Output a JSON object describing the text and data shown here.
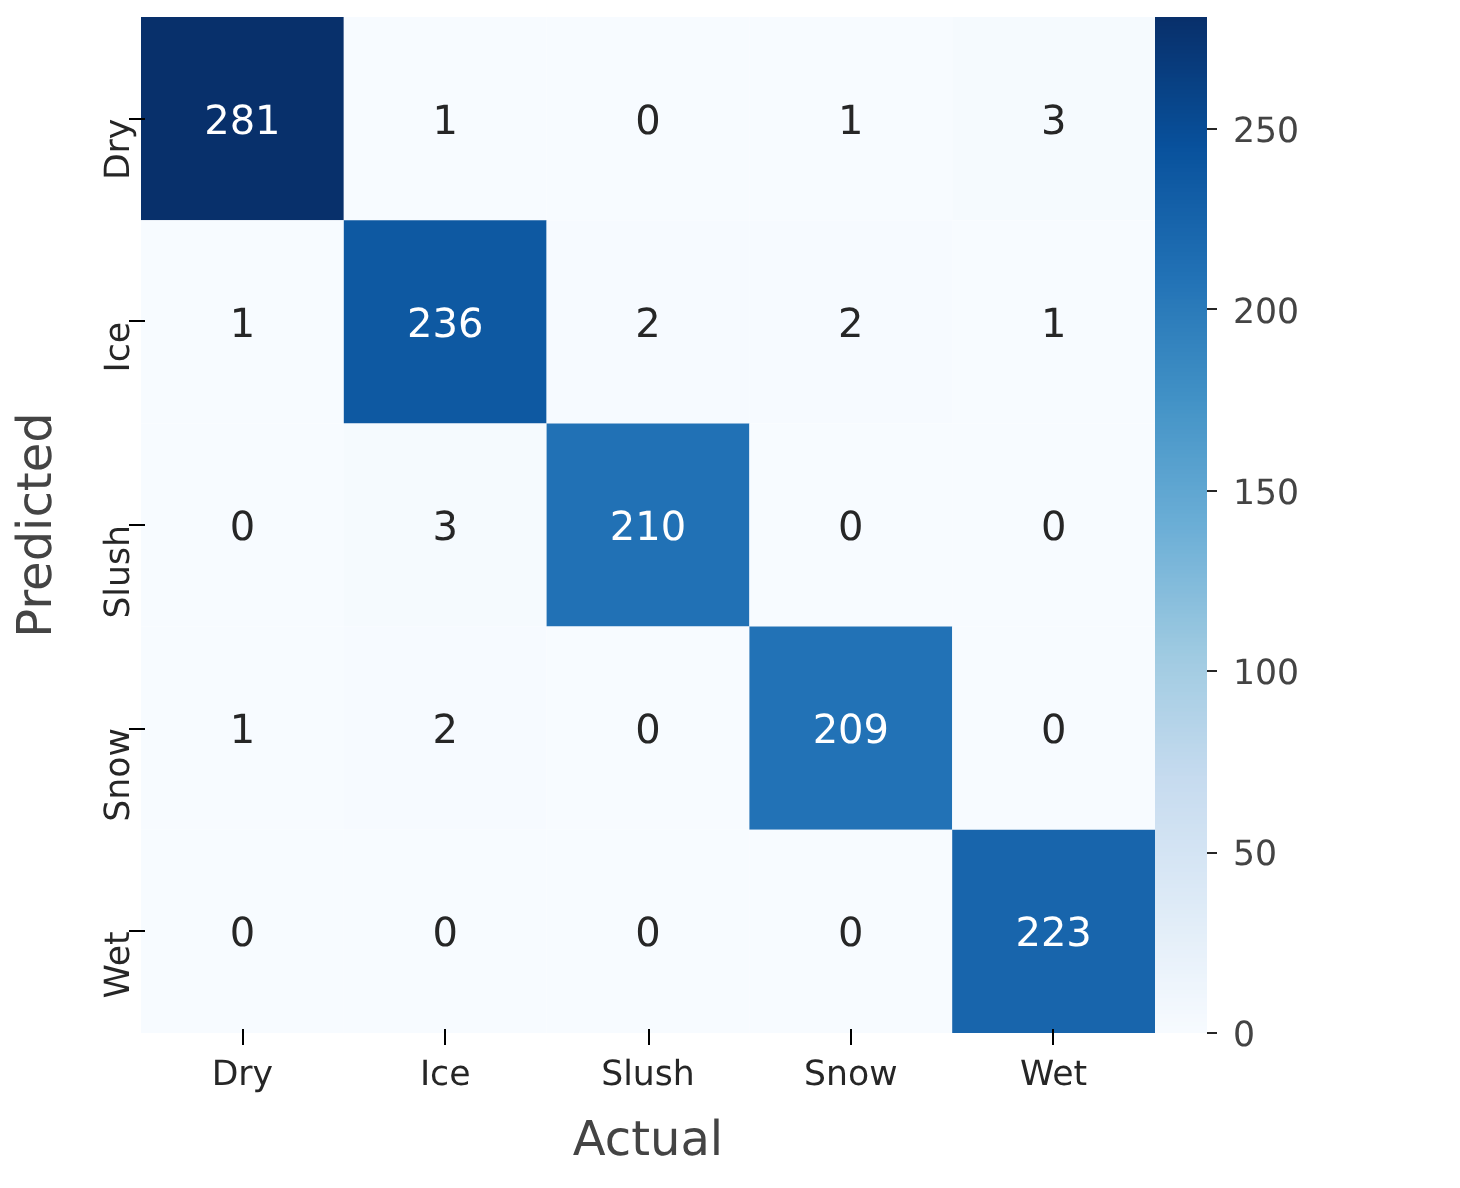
{
  "chart_data": {
    "type": "heatmap",
    "xlabel": "Actual",
    "ylabel": "Predicted",
    "categories": [
      "Dry",
      "Ice",
      "Slush",
      "Snow",
      "Wet"
    ],
    "y_categories": [
      "Dry",
      "Ice",
      "Slush",
      "Snow",
      "Wet"
    ],
    "cells": [
      [
        281,
        1,
        0,
        1,
        3
      ],
      [
        1,
        236,
        2,
        2,
        1
      ],
      [
        0,
        3,
        210,
        0,
        0
      ],
      [
        1,
        2,
        0,
        209,
        0
      ],
      [
        0,
        0,
        0,
        0,
        223
      ]
    ],
    "clim": [
      0,
      281
    ],
    "cticks": [
      0,
      50,
      100,
      150,
      200,
      250
    ],
    "data_labels": true
  }
}
